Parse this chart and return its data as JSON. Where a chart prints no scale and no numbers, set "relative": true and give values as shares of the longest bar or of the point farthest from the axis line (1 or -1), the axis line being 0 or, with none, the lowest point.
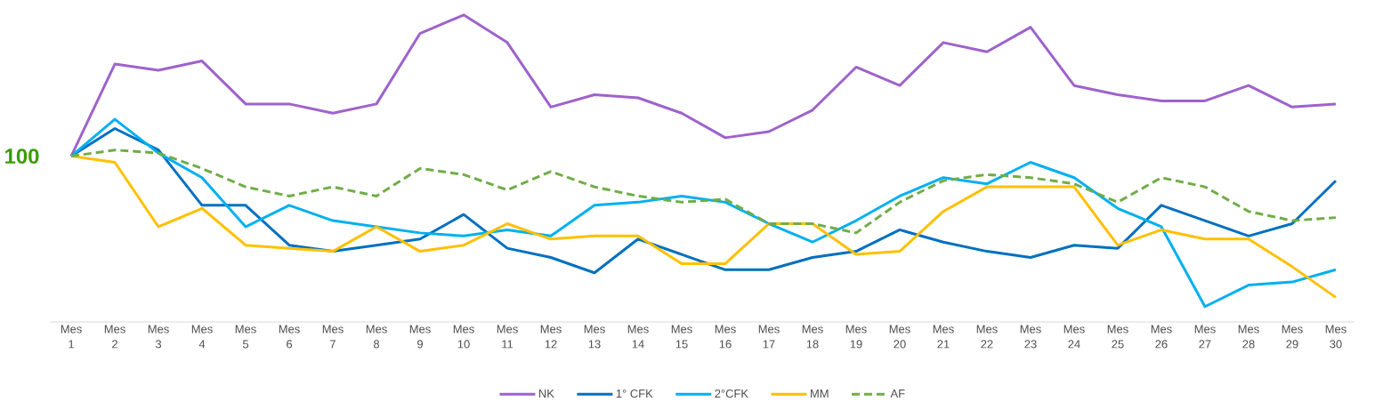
{
  "chart_data": {
    "type": "line",
    "relative": true,
    "legend": "bottom",
    "marker": "none",
    "categories": [
      "Mes 1",
      "Mes 2",
      "Mes 3",
      "Mes 4",
      "Mes 5",
      "Mes 6",
      "Mes 7",
      "Mes 8",
      "Mes 9",
      "Mes 10",
      "Mes 11",
      "Mes 12",
      "Mes 13",
      "Mes 14",
      "Mes 15",
      "Mes 16",
      "Mes 17",
      "Mes 18",
      "Mes 19",
      "Mes 20",
      "Mes 21",
      "Mes 22",
      "Mes 23",
      "Mes 24",
      "Mes 25",
      "Mes 26",
      "Mes 27",
      "Mes 28",
      "Mes 29",
      "Mes 30"
    ],
    "annotations": [
      "100"
    ],
    "series": [
      {
        "name": "NK",
        "color": "#9e62cc",
        "line_style": "solid",
        "values": [
          0.54,
          0.84,
          0.82,
          0.85,
          0.71,
          0.71,
          0.68,
          0.71,
          0.94,
          1,
          0.91,
          0.7,
          0.74,
          0.73,
          0.68,
          0.6,
          0.62,
          0.69,
          0.83,
          0.77,
          0.91,
          0.88,
          0.96,
          0.77,
          0.74,
          0.72,
          0.72,
          0.77,
          0.7,
          0.71
        ]
      },
      {
        "name": "1° CFK",
        "color": "#0070c0",
        "line_style": "solid",
        "values": [
          0.54,
          0.63,
          0.56,
          0.38,
          0.38,
          0.25,
          0.23,
          0.25,
          0.27,
          0.35,
          0.24,
          0.21,
          0.16,
          0.27,
          0.22,
          0.17,
          0.17,
          0.21,
          0.23,
          0.3,
          0.26,
          0.23,
          0.21,
          0.25,
          0.24,
          0.38,
          0.33,
          0.28,
          0.32,
          0.46
        ]
      },
      {
        "name": "2°CFK",
        "color": "#00b0f0",
        "line_style": "solid",
        "values": [
          0.54,
          0.66,
          0.55,
          0.47,
          0.31,
          0.38,
          0.33,
          0.31,
          0.29,
          0.28,
          0.3,
          0.28,
          0.38,
          0.39,
          0.41,
          0.39,
          0.32,
          0.26,
          0.33,
          0.41,
          0.47,
          0.45,
          0.52,
          0.47,
          0.37,
          0.31,
          0.05,
          0.12,
          0.13,
          0.17
        ]
      },
      {
        "name": "MM",
        "color": "#ffc000",
        "line_style": "solid",
        "values": [
          0.54,
          0.52,
          0.31,
          0.37,
          0.25,
          0.24,
          0.23,
          0.31,
          0.23,
          0.25,
          0.32,
          0.27,
          0.28,
          0.28,
          0.19,
          0.19,
          0.32,
          0.32,
          0.22,
          0.23,
          0.36,
          0.44,
          0.44,
          0.44,
          0.25,
          0.3,
          0.27,
          0.27,
          0.18,
          0.08
        ]
      },
      {
        "name": "AF",
        "color": "#70ad47",
        "line_style": "dashed",
        "values": [
          0.54,
          0.56,
          0.55,
          0.5,
          0.44,
          0.41,
          0.44,
          0.41,
          0.5,
          0.48,
          0.43,
          0.49,
          0.44,
          0.41,
          0.39,
          0.4,
          0.32,
          0.32,
          0.29,
          0.39,
          0.46,
          0.48,
          0.47,
          0.45,
          0.39,
          0.47,
          0.44,
          0.36,
          0.33,
          0.34
        ]
      }
    ]
  }
}
